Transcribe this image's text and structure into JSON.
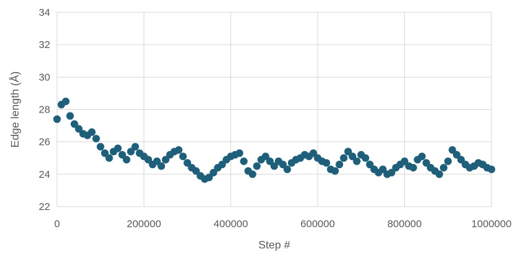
{
  "chart_data": {
    "type": "scatter",
    "title": "",
    "xlabel": "Step #",
    "ylabel": "Edge length (Å)",
    "xlim": [
      0,
      1000000
    ],
    "ylim": [
      22,
      34
    ],
    "x_ticks": [
      0,
      200000,
      400000,
      600000,
      800000,
      1000000
    ],
    "y_ticks": [
      22,
      24,
      26,
      28,
      30,
      32,
      34
    ],
    "x_tick_labels": [
      "0",
      "200000",
      "400000",
      "600000",
      "800000",
      "1000000"
    ],
    "y_tick_labels": [
      "22",
      "24",
      "26",
      "28",
      "30",
      "32",
      "34"
    ],
    "grid": true,
    "legend": "none",
    "marker_color": "#1f5f7a",
    "series": [
      {
        "x": [
          0,
          10000,
          20000,
          30000,
          40000,
          50000,
          60000,
          70000,
          80000,
          90000,
          100000,
          110000,
          120000,
          130000,
          140000,
          150000,
          160000,
          170000,
          180000,
          190000,
          200000,
          210000,
          220000,
          230000,
          240000,
          250000,
          260000,
          270000,
          280000,
          290000,
          300000,
          310000,
          320000,
          330000,
          340000,
          350000,
          360000,
          370000,
          380000,
          390000,
          400000,
          410000,
          420000,
          430000,
          440000,
          450000,
          460000,
          470000,
          480000,
          490000,
          500000,
          510000,
          520000,
          530000,
          540000,
          550000,
          560000,
          570000,
          580000,
          590000,
          600000,
          610000,
          620000,
          630000,
          640000,
          650000,
          660000,
          670000,
          680000,
          690000,
          700000,
          710000,
          720000,
          730000,
          740000,
          750000,
          760000,
          770000,
          780000,
          790000,
          800000,
          810000,
          820000,
          830000,
          840000,
          850000,
          860000,
          870000,
          880000,
          890000,
          900000,
          910000,
          920000,
          930000,
          940000,
          950000,
          960000,
          970000,
          980000,
          990000,
          1000000
        ],
        "values": [
          27.4,
          28.3,
          28.5,
          27.6,
          27.1,
          26.8,
          26.5,
          26.4,
          26.6,
          26.2,
          25.7,
          25.3,
          25.0,
          25.4,
          25.6,
          25.2,
          24.9,
          25.4,
          25.7,
          25.3,
          25.1,
          24.9,
          24.6,
          24.8,
          24.5,
          24.9,
          25.2,
          25.4,
          25.5,
          25.1,
          24.7,
          24.4,
          24.2,
          23.9,
          23.7,
          23.8,
          24.1,
          24.4,
          24.6,
          24.9,
          25.1,
          25.2,
          25.3,
          24.8,
          24.2,
          24.0,
          24.5,
          24.9,
          25.1,
          24.8,
          24.5,
          24.8,
          24.6,
          24.3,
          24.7,
          24.9,
          25.0,
          25.2,
          25.1,
          25.3,
          25.0,
          24.8,
          24.7,
          24.3,
          24.2,
          24.6,
          25.0,
          25.4,
          25.1,
          24.8,
          25.2,
          25.0,
          24.6,
          24.3,
          24.1,
          24.3,
          24.0,
          24.1,
          24.4,
          24.6,
          24.8,
          24.5,
          24.4,
          24.9,
          25.1,
          24.7,
          24.4,
          24.2,
          24.0,
          24.4,
          24.8,
          25.5,
          25.2,
          24.9,
          24.6,
          24.4,
          24.5,
          24.7,
          24.6,
          24.4,
          24.3
        ]
      }
    ]
  }
}
